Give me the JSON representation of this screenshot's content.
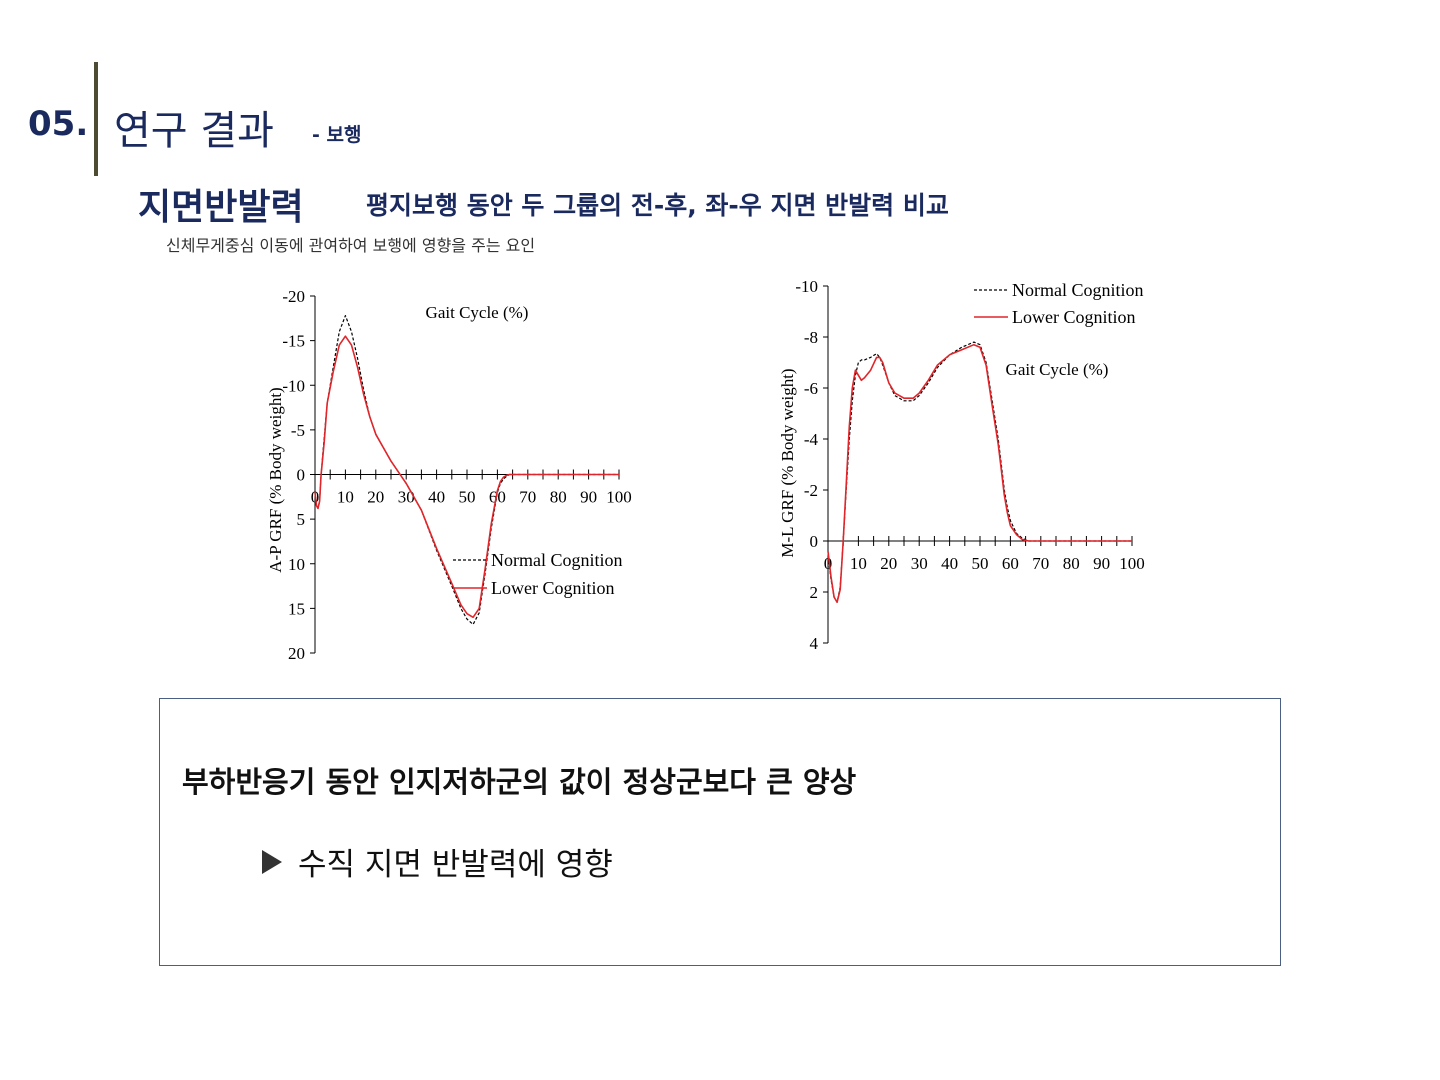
{
  "header": {
    "section_number": "05.",
    "title": "연구 결과",
    "subtitle": "- 보행",
    "accent_color": "#1b2a5e",
    "bar_color": "#4d4c33"
  },
  "heading": {
    "title": "지면반발력",
    "subtitle": "평지보행 동안 두 그룹의 전-후, 좌-우 지면 반발력 비교",
    "description": "신체무게중심 이동에 관여하여 보행에 영향을 주는 요인"
  },
  "chart_data": [
    {
      "type": "line",
      "title": "",
      "xlabel": "Gait Cycle (%)",
      "ylabel": "A-P GRF (% Body weight)",
      "xlim": [
        0,
        100
      ],
      "ylim": [
        -20,
        20
      ],
      "x_ticks": [
        0,
        10,
        20,
        30,
        40,
        50,
        60,
        70,
        80,
        90,
        100
      ],
      "y_ticks": [
        20,
        15,
        10,
        5,
        0,
        -5,
        -10,
        -15,
        -20
      ],
      "legend_position": "bottom-right",
      "series": [
        {
          "name": "Normal Cognition",
          "style": "dashed",
          "color": "#000000",
          "x": [
            0,
            0.5,
            1,
            1.5,
            2,
            3,
            4,
            6,
            8,
            10,
            12,
            14,
            16,
            18,
            20,
            25,
            30,
            35,
            40,
            45,
            48,
            50,
            52,
            54,
            56,
            58,
            60,
            61,
            62,
            63,
            64,
            65,
            70,
            100
          ],
          "y": [
            2,
            3.5,
            3.8,
            3,
            0,
            -4,
            -8,
            -12,
            -16,
            -17.8,
            -16,
            -13,
            -9.5,
            -6.5,
            -4.5,
            -1.5,
            1,
            4,
            8.5,
            12.5,
            15,
            16.2,
            16.8,
            15.5,
            11,
            6,
            2,
            1,
            0.5,
            0.2,
            0,
            0,
            0,
            0
          ]
        },
        {
          "name": "Lower Cognition",
          "style": "solid",
          "color": "#e0262a",
          "x": [
            0,
            0.5,
            1,
            1.5,
            2,
            3,
            4,
            6,
            8,
            10,
            12,
            14,
            16,
            18,
            20,
            25,
            30,
            35,
            40,
            45,
            48,
            50,
            52,
            54,
            56,
            58,
            60,
            61,
            62,
            63,
            64,
            65,
            70,
            100
          ],
          "y": [
            2,
            3.5,
            3.8,
            3,
            0,
            -3.5,
            -8,
            -11.5,
            -14.5,
            -15.5,
            -14.5,
            -12,
            -9,
            -6.5,
            -4.5,
            -1.5,
            1,
            4,
            8.3,
            12.2,
            14.6,
            15.6,
            16,
            15,
            10.5,
            5.5,
            1.8,
            0.8,
            0.3,
            0.1,
            0,
            0,
            0,
            0
          ]
        }
      ]
    },
    {
      "type": "line",
      "title": "",
      "xlabel": "Gait Cycle (%)",
      "ylabel": "M-L GRF (% Body weight)",
      "xlim": [
        0,
        100
      ],
      "ylim": [
        -10,
        4
      ],
      "x_ticks": [
        0,
        10,
        20,
        30,
        40,
        50,
        60,
        70,
        80,
        90,
        100
      ],
      "y_ticks": [
        4,
        2,
        0,
        -2,
        -4,
        -6,
        -8,
        -10
      ],
      "legend_position": "top-right",
      "series": [
        {
          "name": "Normal Cognition",
          "style": "dashed",
          "color": "#000000",
          "x": [
            0,
            1,
            2,
            3,
            4,
            5,
            6,
            7,
            8,
            9,
            10,
            11,
            12,
            14,
            16,
            17,
            18,
            20,
            22,
            25,
            28,
            30,
            33,
            36,
            40,
            44,
            48,
            50,
            52,
            54,
            56,
            57,
            58,
            59,
            60,
            62,
            64,
            66,
            70,
            100
          ],
          "y": [
            0.6,
            1.5,
            2.2,
            2.4,
            1.8,
            0,
            -2,
            -4,
            -5.5,
            -6.5,
            -7,
            -7.1,
            -7.1,
            -7.2,
            -7.35,
            -7.2,
            -6.9,
            -6.2,
            -5.7,
            -5.5,
            -5.5,
            -5.7,
            -6.2,
            -6.8,
            -7.3,
            -7.6,
            -7.8,
            -7.7,
            -7,
            -5.5,
            -4,
            -3,
            -2,
            -1.3,
            -0.8,
            -0.3,
            -0.1,
            0,
            0,
            0
          ]
        },
        {
          "name": "Lower Cognition",
          "style": "solid",
          "color": "#e0262a",
          "x": [
            0,
            1,
            2,
            3,
            4,
            5,
            6,
            7,
            8,
            9,
            10,
            11,
            12,
            14,
            16,
            17,
            18,
            20,
            22,
            25,
            28,
            30,
            33,
            36,
            40,
            44,
            48,
            50,
            52,
            54,
            56,
            57,
            58,
            59,
            60,
            62,
            64,
            66,
            70,
            100
          ],
          "y": [
            0.4,
            1.4,
            2.2,
            2.4,
            1.9,
            0,
            -2.2,
            -4.5,
            -6,
            -6.7,
            -6.5,
            -6.3,
            -6.4,
            -6.7,
            -7.2,
            -7.2,
            -7,
            -6.2,
            -5.8,
            -5.6,
            -5.6,
            -5.8,
            -6.3,
            -6.9,
            -7.3,
            -7.5,
            -7.7,
            -7.6,
            -6.9,
            -5.3,
            -3.8,
            -2.8,
            -1.8,
            -1.1,
            -0.6,
            -0.25,
            -0.05,
            0,
            0,
            0
          ]
        }
      ]
    }
  ],
  "summary": {
    "main_text": "부하반응기 동안 인지저하군의 값이 정상군보다 큰 양상",
    "bullet_icon": "play-triangle-icon",
    "bullet_text": "수직 지면 반발력에 영향"
  }
}
